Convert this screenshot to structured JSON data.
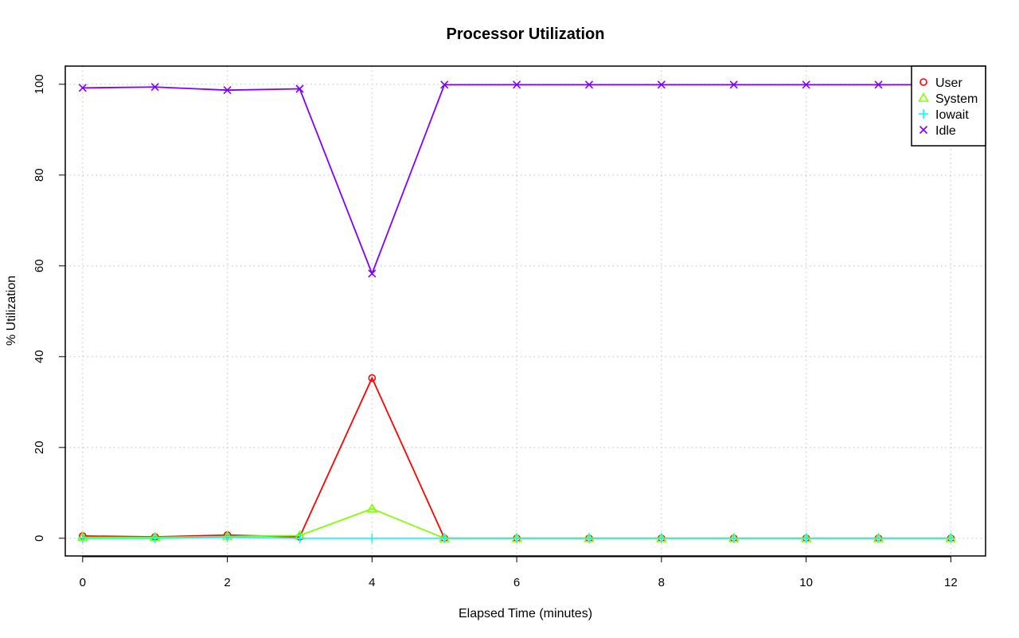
{
  "chart_data": {
    "type": "line",
    "title": "Processor Utilization",
    "xlabel": "Elapsed Time (minutes)",
    "ylabel": "% Utilization",
    "xlim": [
      -0.24,
      12.48
    ],
    "ylim": [
      -3.9,
      104
    ],
    "xticks": [
      0,
      2,
      4,
      6,
      8,
      10,
      12
    ],
    "yticks": [
      0,
      20,
      40,
      60,
      80,
      100
    ],
    "grid": true,
    "legend_position": "top-right",
    "x": [
      0,
      1,
      2,
      3,
      4,
      5,
      6,
      7,
      8,
      9,
      10,
      11,
      12
    ],
    "series": [
      {
        "name": "User",
        "color": "#ff0000",
        "marker": "circle",
        "values": [
          0.5,
          0.3,
          0.7,
          0.3,
          35.3,
          0,
          0,
          0,
          0,
          0,
          0,
          0,
          0
        ]
      },
      {
        "name": "System",
        "color": "#80ff00",
        "marker": "triangle",
        "values": [
          0.2,
          0.2,
          0.4,
          0.6,
          6.5,
          0,
          0,
          0,
          0,
          0,
          0,
          0,
          0
        ]
      },
      {
        "name": "Iowait",
        "color": "#00ffff",
        "marker": "plus",
        "values": [
          0,
          0,
          0.2,
          0,
          0,
          0,
          0,
          0,
          0,
          0,
          0,
          0,
          0
        ]
      },
      {
        "name": "Idle",
        "color": "#8000ff",
        "marker": "x",
        "values": [
          99.2,
          99.4,
          98.7,
          99.0,
          58.3,
          99.9,
          99.9,
          99.9,
          99.9,
          99.9,
          99.9,
          99.9,
          99.9
        ]
      }
    ]
  }
}
